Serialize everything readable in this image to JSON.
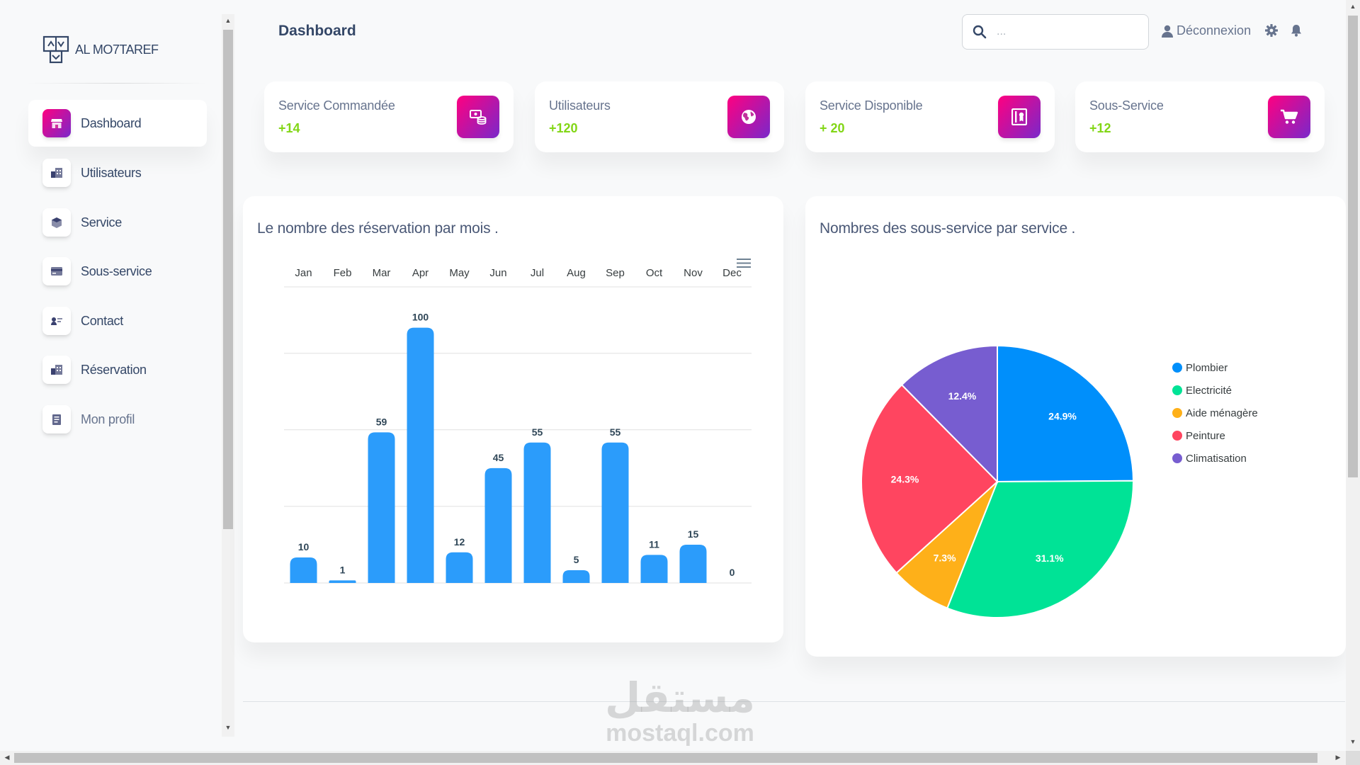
{
  "brand": {
    "name": "AL MO7TAREF"
  },
  "sidebar": {
    "items": [
      {
        "label": "Dashboard",
        "icon": "shop-icon",
        "active": true
      },
      {
        "label": "Utilisateurs",
        "icon": "office-icon"
      },
      {
        "label": "Service",
        "icon": "box-icon"
      },
      {
        "label": "Sous-service",
        "icon": "card-icon"
      },
      {
        "label": "Contact",
        "icon": "contact-icon"
      },
      {
        "label": "Réservation",
        "icon": "office-icon"
      },
      {
        "label": "Mon profil",
        "icon": "document-icon"
      }
    ]
  },
  "header": {
    "title": "Dashboard",
    "search_placeholder": "...",
    "logout_label": "Déconnexion"
  },
  "stats": [
    {
      "title": "Service Commandée",
      "value": "+14",
      "icon": "money-coins-icon"
    },
    {
      "title": "Utilisateurs",
      "value": "+120",
      "icon": "world-icon"
    },
    {
      "title": "Service Disponible",
      "value": "+ 20",
      "icon": "paper-diploma-icon"
    },
    {
      "title": "Sous-Service",
      "value": "+12",
      "icon": "cart-icon"
    }
  ],
  "bar_panel": {
    "title": "Le nombre des réservation par mois ."
  },
  "pie_panel": {
    "title": "Nombres des sous-service par service ."
  },
  "chart_data": [
    {
      "type": "bar",
      "title": "Le nombre des réservation par mois .",
      "categories": [
        "Jan",
        "Feb",
        "Mar",
        "Apr",
        "May",
        "Jun",
        "Jul",
        "Aug",
        "Sep",
        "Oct",
        "Nov",
        "Dec"
      ],
      "values": [
        10,
        1,
        59,
        100,
        12,
        45,
        55,
        5,
        55,
        11,
        15,
        0
      ],
      "ylim": [
        0,
        100
      ],
      "color": "#2b9cfb",
      "x_axis_position": "top",
      "data_labels": true
    },
    {
      "type": "pie",
      "title": "Nombres des sous-service par service .",
      "legend_position": "right",
      "slices": [
        {
          "label": "Plombier",
          "value": 24.9,
          "display": "24.9%",
          "color": "#008ffb"
        },
        {
          "label": "Electricité",
          "value": 31.1,
          "display": "31.1%",
          "color": "#00e396"
        },
        {
          "label": "Aide ménagère",
          "value": 7.3,
          "display": "7.3%",
          "color": "#feb019"
        },
        {
          "label": "Peinture",
          "value": 24.3,
          "display": "24.3%",
          "color": "#ff4560"
        },
        {
          "label": "Climatisation",
          "value": 12.4,
          "display": "12.4%",
          "color": "#775dd0"
        }
      ]
    }
  ],
  "watermark": {
    "arabic": "مستقل",
    "latin": "mostaql.com"
  }
}
